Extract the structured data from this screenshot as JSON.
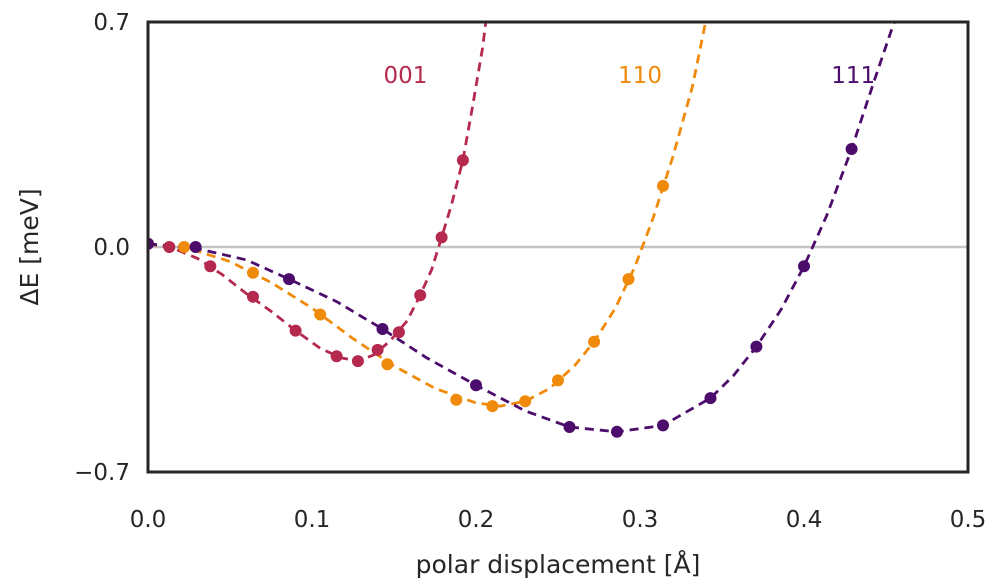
{
  "chart_data": {
    "type": "scatter",
    "xlabel": "polar displacement [Å]",
    "ylabel": "ΔE [meV]",
    "xlim": [
      0.0,
      0.5
    ],
    "ylim": [
      -0.7,
      0.7
    ],
    "xticks": [
      "0.0",
      "0.1",
      "0.2",
      "0.3",
      "0.4",
      "0.5"
    ],
    "xtick_values": [
      0.0,
      0.1,
      0.2,
      0.3,
      0.4,
      0.5
    ],
    "yticks": [
      "−0.7",
      "0.0",
      "0.7"
    ],
    "ytick_values": [
      -0.7,
      0.0,
      0.7
    ],
    "grid": false,
    "zero_line": true,
    "series": [
      {
        "name": "001",
        "color": "#b5294e",
        "label_at": [
          0.157,
          0.535
        ],
        "points": [
          [
            0.0,
            0.01
          ],
          [
            0.013,
            0.0
          ],
          [
            0.038,
            -0.06
          ],
          [
            0.064,
            -0.155
          ],
          [
            0.09,
            -0.26
          ],
          [
            0.115,
            -0.34
          ],
          [
            0.128,
            -0.355
          ],
          [
            0.14,
            -0.32
          ],
          [
            0.153,
            -0.265
          ],
          [
            0.166,
            -0.15
          ],
          [
            0.179,
            0.03
          ],
          [
            0.192,
            0.27
          ]
        ],
        "curve": [
          [
            0.0,
            0.01
          ],
          [
            0.015,
            -0.003
          ],
          [
            0.03,
            -0.035
          ],
          [
            0.045,
            -0.085
          ],
          [
            0.06,
            -0.145
          ],
          [
            0.075,
            -0.2
          ],
          [
            0.09,
            -0.26
          ],
          [
            0.105,
            -0.315
          ],
          [
            0.118,
            -0.345
          ],
          [
            0.128,
            -0.355
          ],
          [
            0.138,
            -0.335
          ],
          [
            0.148,
            -0.29
          ],
          [
            0.158,
            -0.23
          ],
          [
            0.166,
            -0.15
          ],
          [
            0.173,
            -0.07
          ],
          [
            0.179,
            0.03
          ],
          [
            0.185,
            0.13
          ],
          [
            0.192,
            0.27
          ],
          [
            0.198,
            0.44
          ],
          [
            0.204,
            0.62
          ],
          [
            0.206,
            0.7
          ]
        ]
      },
      {
        "name": "110",
        "color": "#f08a0b",
        "label_at": [
          0.3,
          0.535
        ],
        "points": [
          [
            0.0,
            0.01
          ],
          [
            0.022,
            0.0
          ],
          [
            0.064,
            -0.08
          ],
          [
            0.105,
            -0.21
          ],
          [
            0.146,
            -0.365
          ],
          [
            0.188,
            -0.475
          ],
          [
            0.21,
            -0.495
          ],
          [
            0.23,
            -0.48
          ],
          [
            0.25,
            -0.415
          ],
          [
            0.272,
            -0.295
          ],
          [
            0.293,
            -0.1
          ],
          [
            0.314,
            0.19
          ]
        ],
        "curve": [
          [
            0.0,
            0.01
          ],
          [
            0.025,
            -0.005
          ],
          [
            0.05,
            -0.045
          ],
          [
            0.075,
            -0.11
          ],
          [
            0.1,
            -0.19
          ],
          [
            0.125,
            -0.285
          ],
          [
            0.15,
            -0.37
          ],
          [
            0.175,
            -0.44
          ],
          [
            0.2,
            -0.485
          ],
          [
            0.215,
            -0.495
          ],
          [
            0.23,
            -0.48
          ],
          [
            0.245,
            -0.44
          ],
          [
            0.26,
            -0.37
          ],
          [
            0.272,
            -0.295
          ],
          [
            0.285,
            -0.19
          ],
          [
            0.297,
            -0.06
          ],
          [
            0.308,
            0.09
          ],
          [
            0.32,
            0.28
          ],
          [
            0.332,
            0.5
          ],
          [
            0.34,
            0.7
          ]
        ]
      },
      {
        "name": "111",
        "color": "#4c0c6b",
        "label_at": [
          0.43,
          0.535
        ],
        "points": [
          [
            0.0,
            0.01
          ],
          [
            0.029,
            0.0
          ],
          [
            0.086,
            -0.1
          ],
          [
            0.143,
            -0.255
          ],
          [
            0.2,
            -0.43
          ],
          [
            0.257,
            -0.56
          ],
          [
            0.286,
            -0.575
          ],
          [
            0.314,
            -0.555
          ],
          [
            0.343,
            -0.47
          ],
          [
            0.371,
            -0.31
          ],
          [
            0.4,
            -0.06
          ],
          [
            0.429,
            0.305
          ]
        ],
        "curve": [
          [
            0.0,
            0.01
          ],
          [
            0.03,
            -0.005
          ],
          [
            0.06,
            -0.04
          ],
          [
            0.086,
            -0.1
          ],
          [
            0.115,
            -0.17
          ],
          [
            0.143,
            -0.255
          ],
          [
            0.17,
            -0.345
          ],
          [
            0.2,
            -0.43
          ],
          [
            0.23,
            -0.51
          ],
          [
            0.257,
            -0.56
          ],
          [
            0.286,
            -0.575
          ],
          [
            0.314,
            -0.555
          ],
          [
            0.343,
            -0.47
          ],
          [
            0.357,
            -0.4
          ],
          [
            0.371,
            -0.31
          ],
          [
            0.386,
            -0.195
          ],
          [
            0.4,
            -0.06
          ],
          [
            0.414,
            0.1
          ],
          [
            0.429,
            0.305
          ],
          [
            0.443,
            0.52
          ],
          [
            0.455,
            0.7
          ]
        ]
      }
    ]
  }
}
